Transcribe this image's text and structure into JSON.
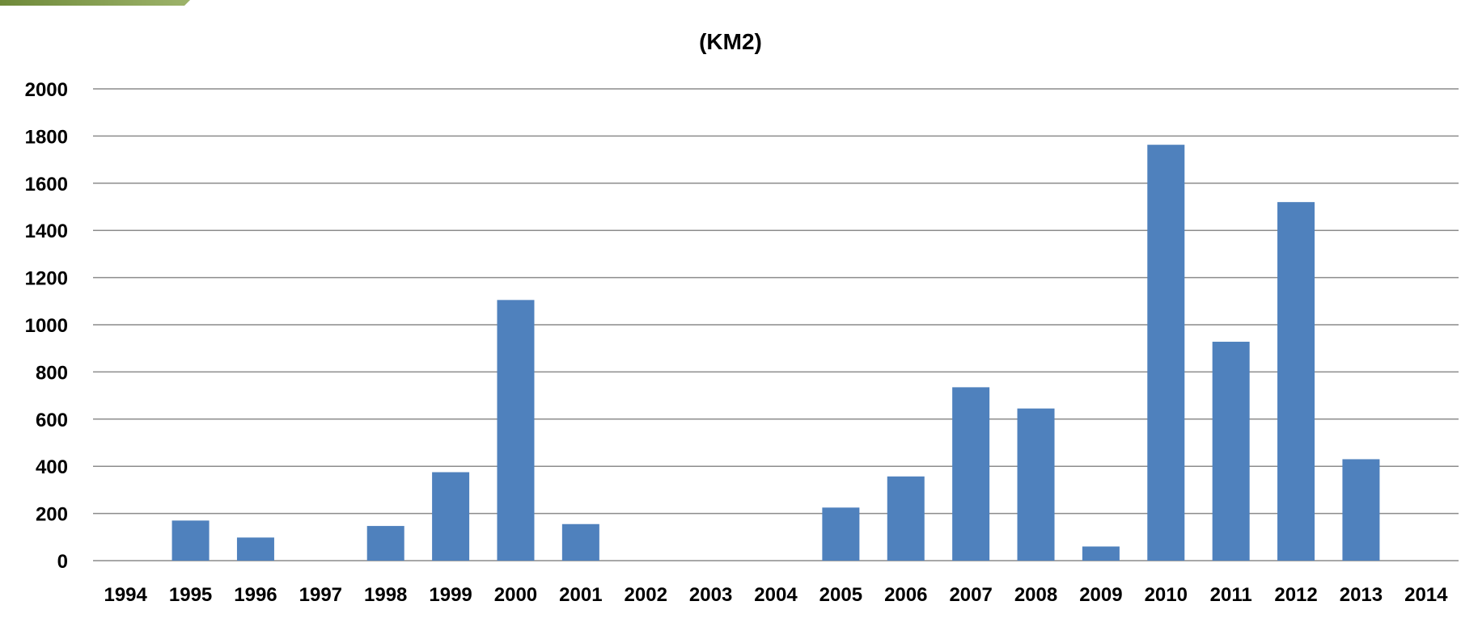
{
  "chart_data": {
    "type": "bar",
    "title": "(KM2)",
    "xlabel": "",
    "ylabel": "",
    "categories": [
      "1994",
      "1995",
      "1996",
      "1997",
      "1998",
      "1999",
      "2000",
      "2001",
      "2002",
      "2003",
      "2004",
      "2005",
      "2006",
      "2007",
      "2008",
      "2009",
      "2010",
      "2011",
      "2012",
      "2013",
      "2014"
    ],
    "values": [
      0,
      170,
      98,
      0,
      147,
      375,
      1105,
      155,
      0,
      0,
      0,
      225,
      357,
      735,
      645,
      60,
      1763,
      928,
      1520,
      430,
      0
    ],
    "ylim": [
      0,
      2000
    ],
    "yticks": [
      0,
      200,
      400,
      600,
      800,
      1000,
      1200,
      1400,
      1600,
      1800,
      2000
    ],
    "grid": true,
    "legend": "none",
    "bar_color": "#4f81bd",
    "grid_color": "#8c8c8c"
  }
}
